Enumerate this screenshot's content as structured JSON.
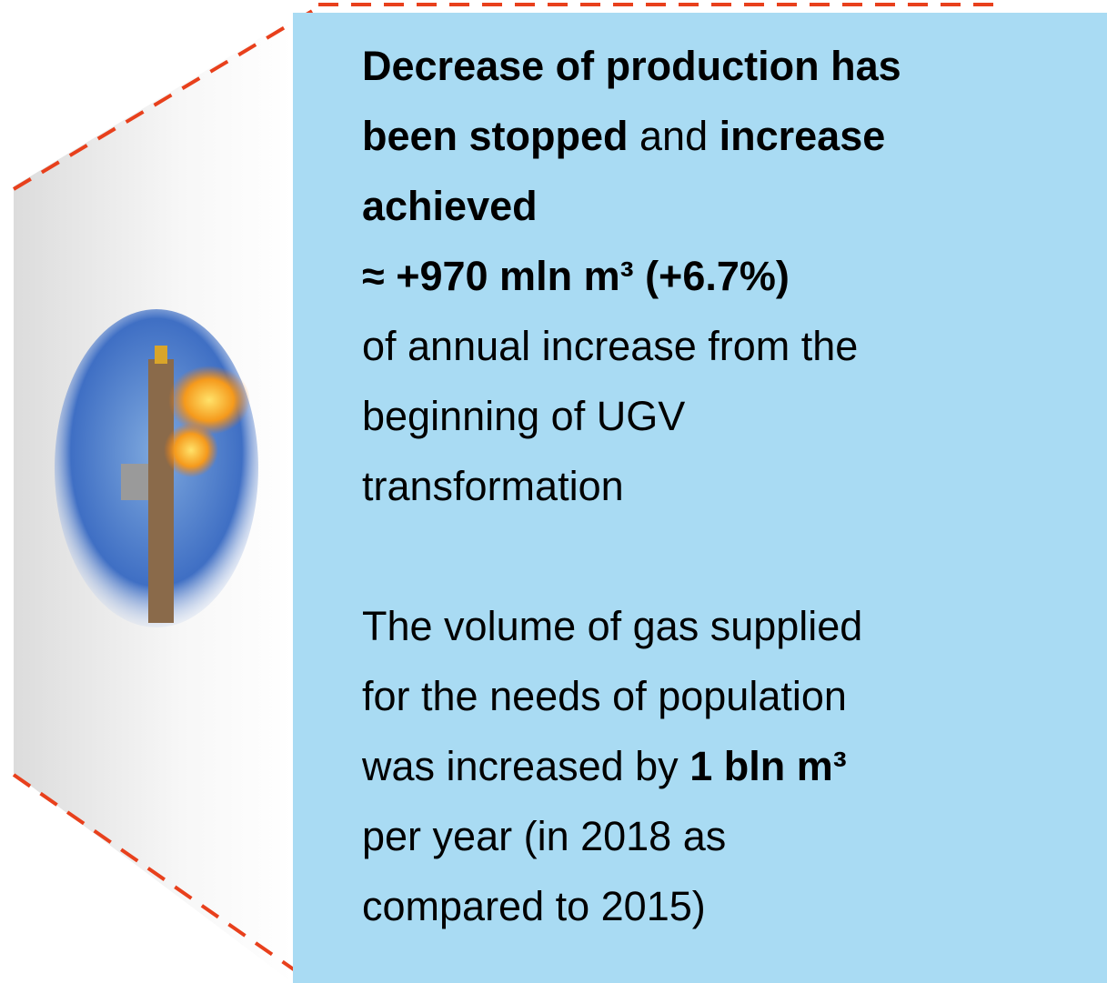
{
  "panel": {
    "paragraphs": [
      {
        "lines": [
          [
            {
              "text": "Decrease of production has",
              "bold": true
            }
          ],
          [
            {
              "text": "been stopped",
              "bold": true
            },
            {
              "text": " and ",
              "bold": false
            },
            {
              "text": "increase",
              "bold": true
            }
          ],
          [
            {
              "text": "achieved",
              "bold": true
            }
          ],
          [
            {
              "text": "≈ +970 mln m³ (+6.7%)",
              "bold": true
            }
          ],
          [
            {
              "text": "of annual increase from the",
              "bold": false
            }
          ],
          [
            {
              "text": "beginning of UGV",
              "bold": false
            }
          ],
          [
            {
              "text": "transformation",
              "bold": false
            }
          ]
        ]
      },
      {
        "lines": [
          [
            {
              "text": "The volume of gas supplied",
              "bold": false
            }
          ],
          [
            {
              "text": "for the needs of population",
              "bold": false
            }
          ],
          [
            {
              "text": "was increased by ",
              "bold": false
            },
            {
              "text": "1 bln m³",
              "bold": true
            }
          ],
          [
            {
              "text": "per year (in 2018 as",
              "bold": false
            }
          ],
          [
            {
              "text": "compared to 2015)",
              "bold": false
            }
          ]
        ]
      }
    ]
  }
}
